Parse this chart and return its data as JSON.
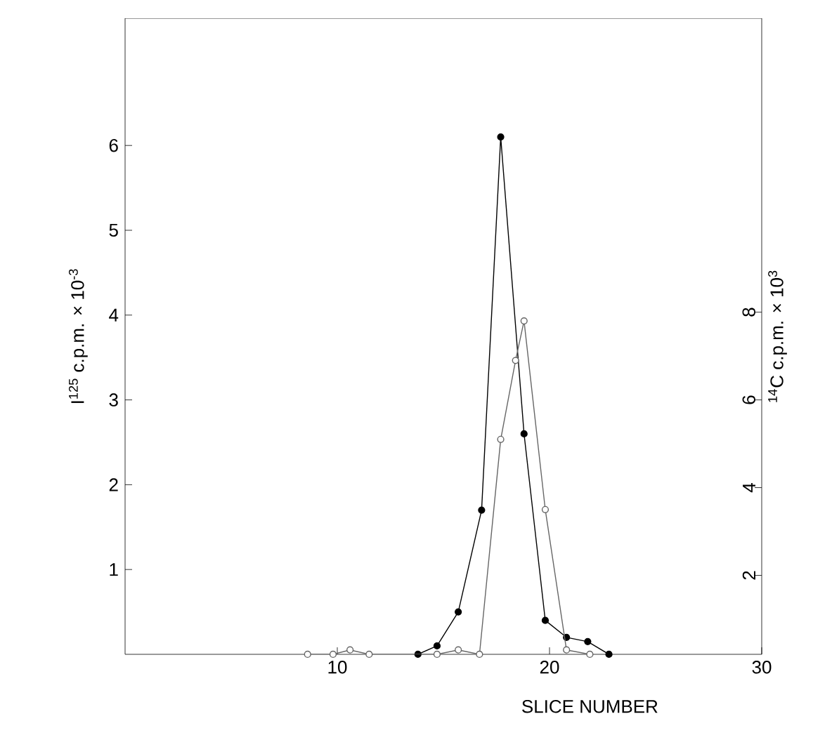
{
  "chart_data": {
    "type": "line",
    "xlabel": "SLICE NUMBER",
    "ylabel": "I$^{125}$ c.p.m. × 10$^{-3}$",
    "y2label": "$^{14}$C c.p.m. × 10$^{3}$",
    "xlim": [
      0,
      30
    ],
    "xticks": [
      10,
      20,
      30
    ],
    "ylim": [
      0,
      7.5
    ],
    "yticks": [
      1,
      2,
      3,
      4,
      5,
      6
    ],
    "y2lim": [
      0.2,
      14.7
    ],
    "y2ticks": [
      2,
      4,
      6,
      8
    ],
    "marker": "circle",
    "line_style": "solid",
    "series": [
      {
        "color": "#000000",
        "x": [
          13.8,
          14.7,
          15.7,
          16.8,
          17.7,
          18.8,
          19.8,
          20.8,
          21.8,
          22.8
        ],
        "values": [
          0,
          0.1,
          0.5,
          1.7,
          6.1,
          2.6,
          0.4,
          0.2,
          0.15,
          0
        ]
      },
      {
        "color": "#666666",
        "axis": "y2",
        "x": [
          8.6,
          9.8,
          10.6,
          11.5,
          14.7,
          15.7,
          16.7,
          17.7,
          18.4,
          18.8,
          19.8,
          20.8,
          21.9
        ],
        "values": [
          0.2,
          0.2,
          0.3,
          0.2,
          0.2,
          0.3,
          0.2,
          5.1,
          6.9,
          7.8,
          3.5,
          0.3,
          0.2
        ]
      }
    ]
  }
}
